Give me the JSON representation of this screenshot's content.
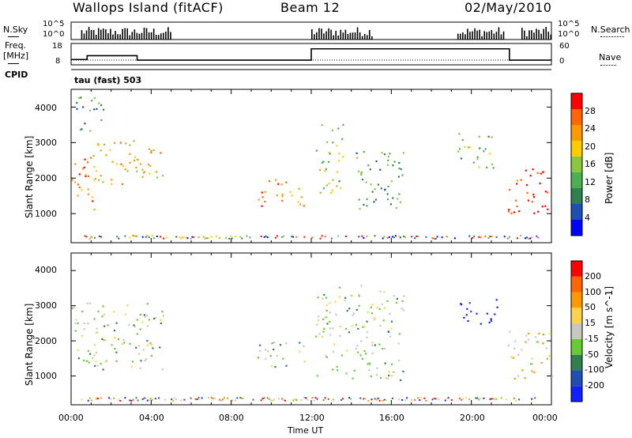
{
  "header": {
    "station": "Wallops Island (fitACF)",
    "beam": "Beam 12",
    "date": "02/May/2010"
  },
  "left_labels": {
    "nsky": "N.Sky",
    "freq": "Freq.",
    "freq_unit": "[MHz]",
    "cpid": "CPID"
  },
  "right_labels": {
    "nsearch": "N.Search",
    "nave": "Nave"
  },
  "cpid_text": "tau (fast) 503",
  "colors": {
    "power": [
      "#0000ff",
      "#1f4fb3",
      "#2f7f4f",
      "#4caf50",
      "#8cc63f",
      "#ffcc00",
      "#ff9900",
      "#ff6600",
      "#ff0000"
    ],
    "velocity": [
      "#1020ff",
      "#1f4fb3",
      "#2f7f4f",
      "#66cc33",
      "#c8c8c0",
      "#ffd24d",
      "#ff9900",
      "#ff6600",
      "#ff0000"
    ]
  },
  "chart_data": [
    {
      "type": "bar",
      "name_key": "nsky",
      "ylim_labels": [
        "10^5",
        "10^0"
      ],
      "right_tick_labels": [
        "10^5",
        "10^0"
      ],
      "activity": [
        [
          0.5,
          5.0
        ],
        [
          12.0,
          15.0
        ],
        [
          19.3,
          21.7
        ],
        [
          22.5,
          24.0
        ]
      ]
    },
    {
      "type": "line",
      "left_tick_labels": [
        "18",
        "8"
      ],
      "right_tick_labels": [
        "60",
        "0"
      ],
      "frequency": {
        "x": [
          0,
          0.8,
          0.8,
          3.3,
          3.3,
          12.0,
          12.0,
          21.9,
          21.9,
          24
        ],
        "y": [
          10.5,
          10.5,
          12.3,
          12.3,
          10.2,
          10.2,
          15.5,
          15.5,
          10.2,
          10.2
        ]
      },
      "nave_level": 10.2
    },
    {
      "type": "heatmap",
      "title": "Power [dB]",
      "ylabel": "Slant Range [km]",
      "y_ticks": [
        1000,
        2000,
        3000,
        4000
      ],
      "ylim": [
        180,
        4500
      ],
      "colorbar_ticks": [
        "28",
        "24",
        "20",
        "16",
        "12",
        "8",
        "4"
      ],
      "echo_regions": [
        {
          "t0": 0.0,
          "t1": 1.2,
          "r0": 1000,
          "r1": 2600,
          "level": 0.82
        },
        {
          "t0": 1.0,
          "t1": 4.6,
          "r0": 1800,
          "r1": 3100,
          "level": 0.62
        },
        {
          "t0": 0.2,
          "t1": 1.8,
          "r0": 3300,
          "r1": 4300,
          "level": 0.35
        },
        {
          "t0": 9.3,
          "t1": 11.8,
          "r0": 1200,
          "r1": 2000,
          "level": 0.78
        },
        {
          "t0": 12.2,
          "t1": 13.6,
          "r0": 1600,
          "r1": 3600,
          "level": 0.5
        },
        {
          "t0": 14.2,
          "t1": 16.6,
          "r0": 900,
          "r1": 2800,
          "level": 0.35
        },
        {
          "t0": 19.3,
          "t1": 21.3,
          "r0": 2300,
          "r1": 3300,
          "level": 0.45
        },
        {
          "t0": 21.8,
          "t1": 24.0,
          "r0": 1000,
          "r1": 2300,
          "level": 0.95
        }
      ]
    },
    {
      "type": "heatmap",
      "title": "Velocity [m s^-1]",
      "xlabel": "Time UT",
      "ylabel": "Slant Range [km]",
      "y_ticks": [
        1000,
        2000,
        3000,
        4000
      ],
      "ylim": [
        180,
        4500
      ],
      "x_ticks": [
        "00:00",
        "04:00",
        "08:00",
        "12:00",
        "16:00",
        "20:00",
        "00:00"
      ],
      "colorbar_ticks": [
        "200",
        "100",
        "50",
        "15",
        "-15",
        "-50",
        "-100",
        "-200"
      ],
      "echo_regions": [
        {
          "t0": 0.0,
          "t1": 4.6,
          "r0": 1200,
          "r1": 3100,
          "level": 0.45
        },
        {
          "t0": 9.3,
          "t1": 11.8,
          "r0": 1200,
          "r1": 2000,
          "level": 0.45
        },
        {
          "t0": 12.2,
          "t1": 16.6,
          "r0": 900,
          "r1": 3600,
          "level": 0.45
        },
        {
          "t0": 19.3,
          "t1": 21.3,
          "r0": 2500,
          "r1": 3300,
          "level": 0.0
        },
        {
          "t0": 21.8,
          "t1": 24.0,
          "r0": 900,
          "r1": 2300,
          "level": 0.6
        }
      ]
    }
  ]
}
